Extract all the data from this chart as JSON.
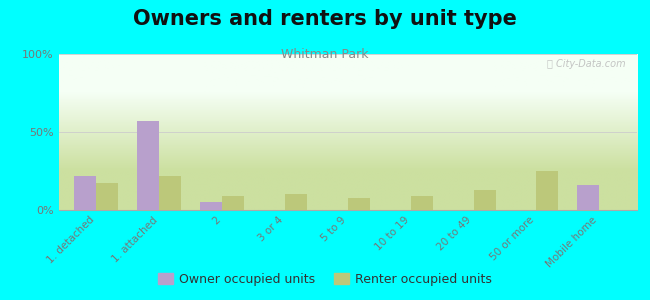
{
  "title": "Owners and renters by unit type",
  "subtitle": "Whitman Park",
  "categories": [
    "1. detached",
    "1. attached",
    "2",
    "3 or 4",
    "5 to 9",
    "10 to 19",
    "20 to 49",
    "50 or more",
    "Mobile home"
  ],
  "owner_values": [
    22,
    57,
    5,
    0,
    0,
    0,
    0,
    0,
    16
  ],
  "renter_values": [
    17,
    22,
    9,
    10,
    8,
    9,
    13,
    25,
    0
  ],
  "owner_color": "#b8a0cc",
  "renter_color": "#bcc87a",
  "bg_top_color": "#f5fff5",
  "bg_bottom_color": "#cce0a0",
  "figure_bg": "#00ffff",
  "ylim": [
    0,
    100
  ],
  "yticks": [
    0,
    50,
    100
  ],
  "ytick_labels": [
    "0%",
    "50%",
    "100%"
  ],
  "legend_owner": "Owner occupied units",
  "legend_renter": "Renter occupied units",
  "title_fontsize": 15,
  "subtitle_fontsize": 9,
  "bar_width": 0.35,
  "watermark": "Ⓢ City-Data.com"
}
